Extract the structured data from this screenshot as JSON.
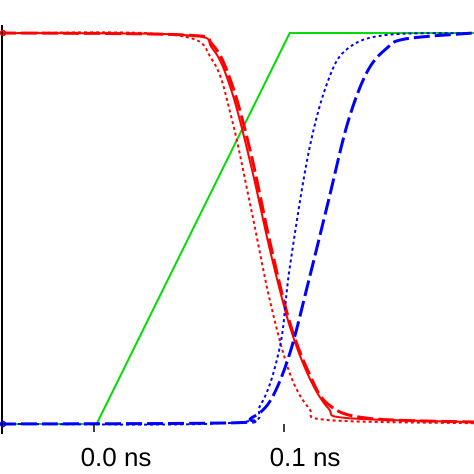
{
  "chart_data": {
    "type": "line",
    "title": "",
    "xlabel": "",
    "ylabel": "",
    "xlim": [
      -0.05,
      0.1954
    ],
    "ylim": [
      0,
      1
    ],
    "x_tick_values": [
      0.0,
      0.1
    ],
    "x_tick_labels": [
      "0.0 ns",
      "0.1 ns"
    ],
    "grid": false,
    "legend": "none",
    "series": [
      {
        "color": "#00dd00",
        "style": "solid",
        "points": [
          [
            -0.05,
            0
          ],
          [
            0.0,
            0
          ],
          [
            0.1,
            1
          ],
          [
            0.1954,
            1
          ]
        ]
      },
      {
        "color": "#ff0000",
        "style": "dashed",
        "points": [
          [
            -0.05,
            1
          ],
          [
            0.045,
            0.995
          ],
          [
            0.06,
            0.97
          ],
          [
            0.07,
            0.87
          ],
          [
            0.08,
            0.69
          ],
          [
            0.09,
            0.46
          ],
          [
            0.1,
            0.26
          ],
          [
            0.11,
            0.13
          ],
          [
            0.12,
            0.05
          ],
          [
            0.14,
            0.015
          ],
          [
            0.1954,
            0.005
          ]
        ]
      },
      {
        "color": "#ff0000",
        "style": "solid",
        "points": [
          [
            -0.05,
            1
          ],
          [
            0.045,
            0.995
          ],
          [
            0.06,
            0.96
          ],
          [
            0.07,
            0.85
          ],
          [
            0.08,
            0.66
          ],
          [
            0.09,
            0.44
          ],
          [
            0.1,
            0.25
          ],
          [
            0.11,
            0.12
          ],
          [
            0.12,
            0.04
          ],
          [
            0.13,
            0.015
          ],
          [
            0.1954,
            0.005
          ]
        ]
      },
      {
        "color": "#ff0000",
        "style": "dotted",
        "points": [
          [
            -0.05,
            1
          ],
          [
            0.04,
            0.995
          ],
          [
            0.06,
            0.93
          ],
          [
            0.07,
            0.78
          ],
          [
            0.08,
            0.55
          ],
          [
            0.09,
            0.31
          ],
          [
            0.1,
            0.13
          ],
          [
            0.11,
            0.04
          ],
          [
            0.12,
            0.01
          ],
          [
            0.1954,
            0.002
          ]
        ]
      },
      {
        "color": "#0000ff",
        "style": "dotted",
        "points": [
          [
            -0.05,
            0
          ],
          [
            0.07,
            0.003
          ],
          [
            0.085,
            0.05
          ],
          [
            0.095,
            0.2
          ],
          [
            0.1,
            0.4
          ],
          [
            0.11,
            0.7
          ],
          [
            0.12,
            0.88
          ],
          [
            0.13,
            0.96
          ],
          [
            0.15,
            0.995
          ],
          [
            0.1954,
            1
          ]
        ]
      },
      {
        "color": "#0000ff",
        "style": "dashed",
        "points": [
          [
            -0.05,
            0
          ],
          [
            0.07,
            0.003
          ],
          [
            0.08,
            0.015
          ],
          [
            0.09,
            0.06
          ],
          [
            0.1,
            0.18
          ],
          [
            0.11,
            0.37
          ],
          [
            0.12,
            0.57
          ],
          [
            0.13,
            0.77
          ],
          [
            0.14,
            0.9
          ],
          [
            0.15,
            0.96
          ],
          [
            0.16,
            0.985
          ],
          [
            0.1954,
            1
          ]
        ]
      }
    ]
  }
}
